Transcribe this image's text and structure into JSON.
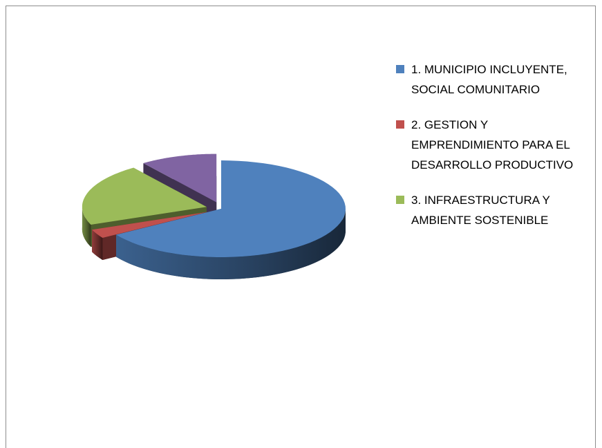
{
  "chart_data": {
    "type": "pie3d",
    "categories": [
      "1.  MUNICIPIO INCLUYENTE, SOCIAL COMUNITARIO",
      "2.  GESTION Y EMPRENDIMIENTO PARA EL DESARROLLO PRODUCTIVO",
      "3.  INFRAESTRUCTURA Y AMBIENTE SOSTENIBLE",
      null
    ],
    "values": [
      66,
      3,
      21,
      10
    ],
    "colors": [
      "#4f81bd",
      "#c0504d",
      "#9bbb59",
      "#8064a2"
    ],
    "legend": "right"
  }
}
